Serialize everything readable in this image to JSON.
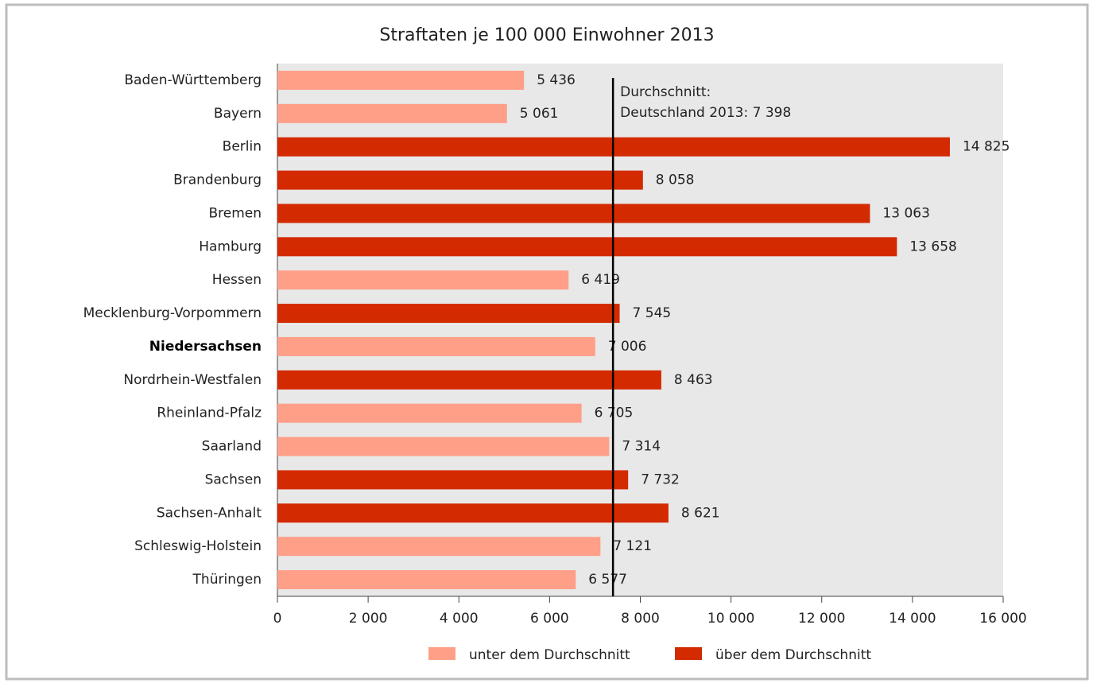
{
  "chart_data": {
    "type": "hbar",
    "title": "Straftaten je 100 000 Einwohner 2013",
    "categories": [
      "Baden-Württemberg",
      "Bayern",
      "Berlin",
      "Brandenburg",
      "Bremen",
      "Hamburg",
      "Hessen",
      "Mecklenburg-Vorpommern",
      "Niedersachsen",
      "Nordrhein-Westfalen",
      "Rheinland-Pfalz",
      "Saarland",
      "Sachsen",
      "Sachsen-Anhalt",
      "Schleswig-Holstein",
      "Thüringen"
    ],
    "highlight": "Niedersachsen",
    "series": [
      {
        "name": "unter dem Durchschnitt",
        "color": "#ff9f88",
        "values": [
          5436,
          5061,
          null,
          null,
          null,
          null,
          6419,
          null,
          7006,
          null,
          6705,
          7314,
          null,
          null,
          7121,
          6577
        ],
        "value_labels": [
          "5 436",
          "5 061",
          null,
          null,
          null,
          null,
          "6 419",
          null,
          "7 006",
          null,
          "6 705",
          "7 314",
          null,
          null,
          "7 121",
          "6 577"
        ]
      },
      {
        "name": "über dem Durchschnitt",
        "color": "#d42a00",
        "values": [
          null,
          null,
          14825,
          8058,
          13063,
          13658,
          null,
          7545,
          null,
          8463,
          null,
          null,
          7732,
          8621,
          null,
          null
        ],
        "value_labels": [
          null,
          null,
          "14 825",
          "8 058",
          "13 063",
          "13 658",
          null,
          "7 545",
          null,
          "8 463",
          null,
          null,
          "7 732",
          "8 621",
          null,
          null
        ]
      }
    ],
    "reference_line": {
      "value": 7398,
      "label": [
        "Durchschnitt:",
        "Deutschland 2013: 7 398"
      ]
    },
    "xlim": [
      0,
      16000
    ],
    "xticks": [
      0,
      {
        "value": 2000,
        "label": "2 000"
      },
      {
        "value": 4000,
        "label": "4 000"
      },
      {
        "value": 6000,
        "label": "6 000"
      },
      {
        "value": 8000,
        "label": "8 000"
      },
      {
        "value": 10000,
        "label": "10 000"
      },
      {
        "value": 12000,
        "label": "12 000"
      },
      {
        "value": 14000,
        "label": "14 000"
      },
      {
        "value": 16000,
        "label": "16 000"
      }
    ],
    "plot_background": "#e8e8e8"
  }
}
